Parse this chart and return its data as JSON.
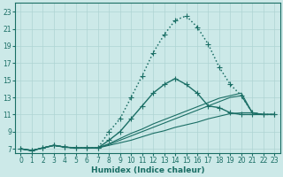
{
  "xlabel": "Humidex (Indice chaleur)",
  "ylabel": "",
  "background_color": "#cce9e8",
  "grid_color": "#aed4d3",
  "line_color": "#1a6e65",
  "xlim": [
    -0.5,
    23.5
  ],
  "ylim": [
    6.5,
    24.0
  ],
  "x_ticks": [
    0,
    1,
    2,
    3,
    4,
    5,
    6,
    7,
    8,
    9,
    10,
    11,
    12,
    13,
    14,
    15,
    16,
    17,
    18,
    19,
    20,
    21,
    22,
    23
  ],
  "y_ticks": [
    7,
    9,
    11,
    13,
    15,
    17,
    19,
    21,
    23
  ],
  "lines": [
    {
      "x": [
        0,
        1,
        2,
        3,
        4,
        5,
        6,
        7,
        8,
        9,
        10,
        11,
        12,
        13,
        14,
        15,
        16,
        17,
        18,
        19,
        20,
        21,
        22,
        23
      ],
      "y": [
        7.0,
        6.8,
        7.1,
        7.4,
        7.2,
        7.1,
        7.1,
        7.1,
        9.0,
        10.5,
        13.0,
        15.5,
        18.2,
        20.3,
        22.0,
        22.5,
        21.2,
        19.2,
        16.5,
        14.5,
        13.2,
        11.2,
        11.0,
        11.0
      ],
      "marker": "+",
      "linestyle": ":",
      "linewidth": 1.1,
      "markersize": 4
    },
    {
      "x": [
        0,
        1,
        2,
        3,
        4,
        5,
        6,
        7,
        8,
        9,
        10,
        11,
        12,
        13,
        14,
        15,
        16,
        17,
        18,
        19,
        20,
        21,
        22,
        23
      ],
      "y": [
        7.0,
        6.8,
        7.1,
        7.4,
        7.2,
        7.1,
        7.1,
        7.1,
        7.5,
        8.0,
        8.5,
        9.0,
        9.5,
        10.0,
        10.5,
        11.0,
        11.5,
        12.0,
        12.5,
        13.0,
        13.2,
        11.2,
        11.0,
        11.0
      ],
      "marker": null,
      "linestyle": "-",
      "linewidth": 0.8,
      "markersize": 0
    },
    {
      "x": [
        0,
        1,
        2,
        3,
        4,
        5,
        6,
        7,
        8,
        9,
        10,
        11,
        12,
        13,
        14,
        15,
        16,
        17,
        18,
        19,
        20,
        21,
        22,
        23
      ],
      "y": [
        7.0,
        6.8,
        7.1,
        7.4,
        7.2,
        7.1,
        7.1,
        7.1,
        7.6,
        8.2,
        8.8,
        9.3,
        9.9,
        10.4,
        10.9,
        11.4,
        11.9,
        12.4,
        12.9,
        13.2,
        13.5,
        11.2,
        11.0,
        11.0
      ],
      "marker": null,
      "linestyle": "-",
      "linewidth": 0.8,
      "markersize": 0
    },
    {
      "x": [
        0,
        1,
        2,
        3,
        4,
        5,
        6,
        7,
        8,
        9,
        10,
        11,
        12,
        13,
        14,
        15,
        16,
        17,
        18,
        19,
        20,
        21,
        22,
        23
      ],
      "y": [
        7.0,
        6.8,
        7.1,
        7.4,
        7.2,
        7.1,
        7.1,
        7.1,
        8.0,
        9.0,
        10.5,
        12.0,
        13.5,
        14.5,
        15.2,
        14.5,
        13.5,
        12.0,
        11.8,
        11.2,
        11.0,
        11.0,
        11.0,
        11.0
      ],
      "marker": "+",
      "linestyle": "-",
      "linewidth": 1.0,
      "markersize": 4
    },
    {
      "x": [
        0,
        1,
        2,
        3,
        4,
        5,
        6,
        7,
        8,
        9,
        10,
        11,
        12,
        13,
        14,
        15,
        16,
        17,
        18,
        19,
        20,
        21,
        22,
        23
      ],
      "y": [
        7.0,
        6.8,
        7.1,
        7.4,
        7.2,
        7.1,
        7.1,
        7.1,
        7.4,
        7.7,
        8.0,
        8.4,
        8.8,
        9.1,
        9.5,
        9.8,
        10.1,
        10.5,
        10.8,
        11.1,
        11.2,
        11.2,
        11.0,
        11.0
      ],
      "marker": null,
      "linestyle": "-",
      "linewidth": 0.8,
      "markersize": 0
    }
  ],
  "tick_fontsize": 5.5,
  "label_fontsize": 6.5
}
